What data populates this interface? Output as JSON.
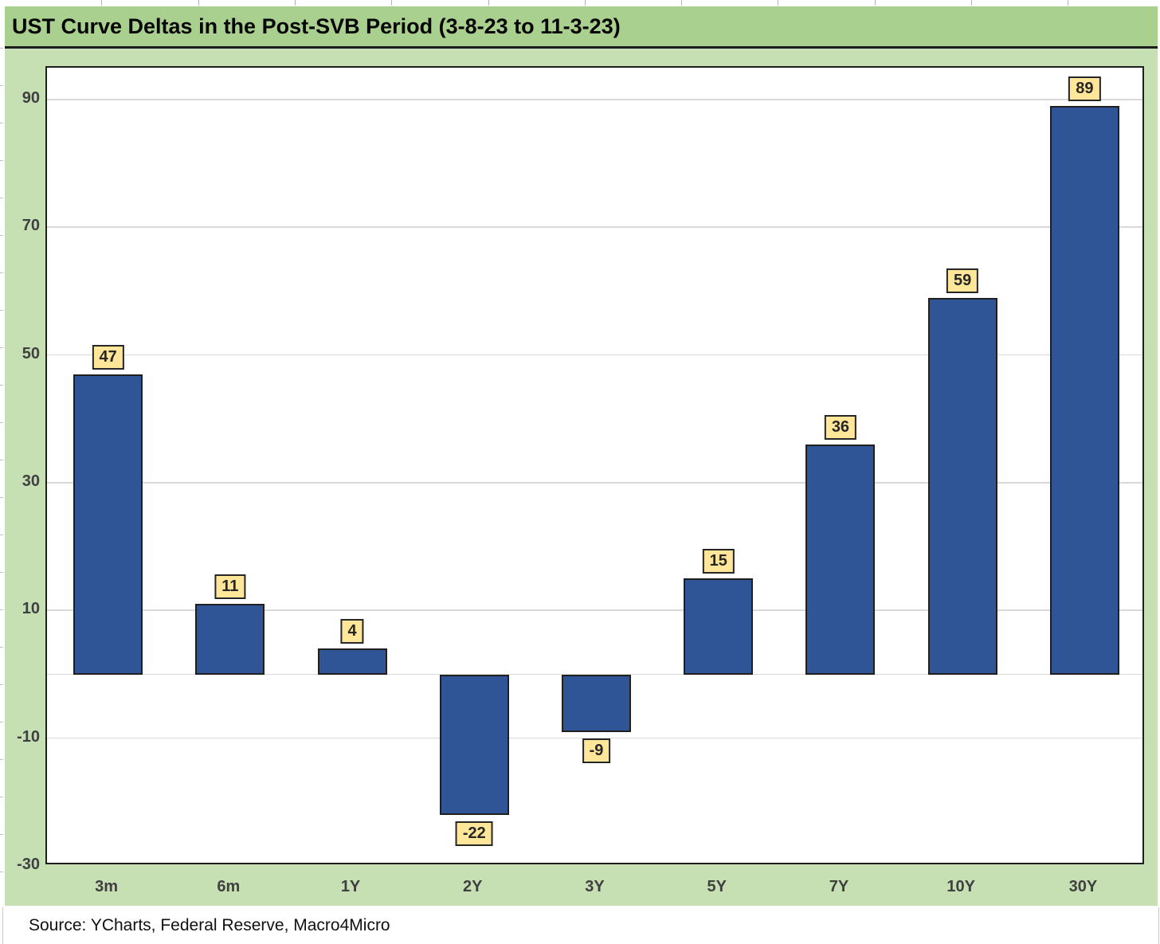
{
  "page": {
    "title_bar": {
      "text": "UST Curve Deltas in the Post-SVB Period (3-8-23 to 11-3-23)"
    },
    "source_note": "Source: YCharts, Federal Reserve, Macro4Micro"
  },
  "colors": {
    "title_band_bg": "#A9D08E",
    "chart_body_bg": "#C6E0B4",
    "plot_bg": "#FFFFFF",
    "bar_fill": "#2F5597",
    "bar_border": "#1F1F1F",
    "value_label_bg": "#FFE699",
    "value_label_border": "#262626",
    "gridline": "#D9D9D9",
    "axis_text": "#404040"
  },
  "chart_data": {
    "type": "bar",
    "title": "UST Curve Deltas in the Post-SVB Period (3-8-23 to 11-3-23)",
    "categories": [
      "3m",
      "6m",
      "1Y",
      "2Y",
      "3Y",
      "5Y",
      "7Y",
      "10Y",
      "30Y"
    ],
    "values": [
      47,
      11,
      4,
      -22,
      -9,
      15,
      36,
      59,
      89
    ],
    "bar_value_labels": [
      "47",
      "11",
      "4",
      "-22",
      "-9",
      "15",
      "36",
      "59",
      "89"
    ],
    "xlabel": "",
    "ylabel": "",
    "ylim": [
      -30,
      95
    ],
    "yticks": [
      90,
      70,
      50,
      30,
      10,
      -10,
      -30
    ],
    "grid": true,
    "legend_position": "none",
    "source": "Source: YCharts, Federal Reserve, Macro4Micro"
  }
}
